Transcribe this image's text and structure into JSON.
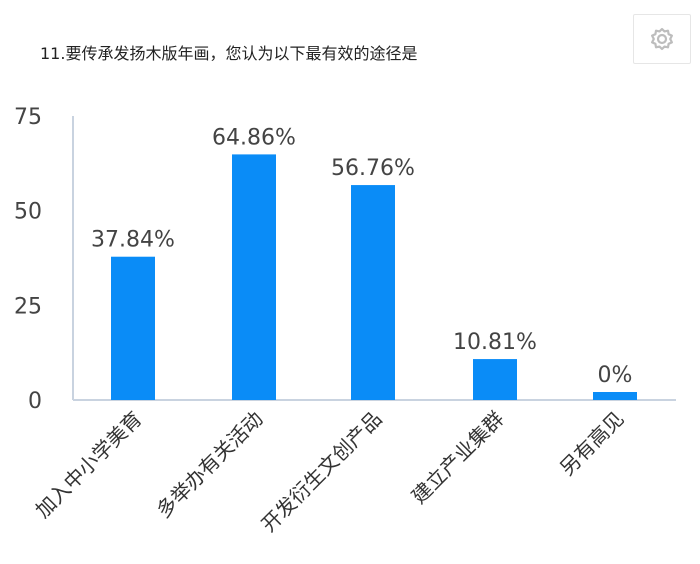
{
  "question": {
    "title": "11.要传承发扬木版年画，您认为以下最有效的途径是"
  },
  "settings": {
    "icon": "gear-icon"
  },
  "colors": {
    "bar": "#0a8cf7",
    "axis": "#c9d3e0",
    "text": "#444444"
  },
  "chart_data": {
    "type": "bar",
    "categories": [
      "加入中小学美育",
      "多举办有关活动",
      "开发衍生文创产品",
      "建立产业集群",
      "另有高见"
    ],
    "values": [
      37.84,
      64.86,
      56.76,
      10.81,
      0
    ],
    "data_labels": [
      "37.84%",
      "64.86%",
      "56.76%",
      "10.81%",
      "0%"
    ],
    "yticks": [
      "0",
      "25",
      "50",
      "75"
    ],
    "ylim": [
      0,
      75
    ],
    "grid": false,
    "legend": "none"
  }
}
